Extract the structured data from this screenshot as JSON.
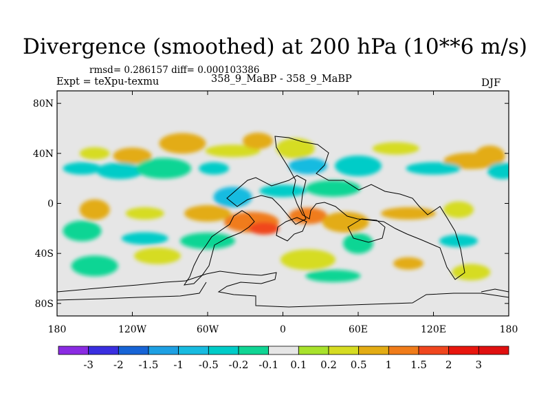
{
  "header": {
    "title": "Divergence (smoothed) at 200 hPa (10**6 m/s)",
    "stats": "rmsd= 0.286157 diff= 0.000103386",
    "expt": "Expt = teXpu-texmu",
    "cases": "358_9_MaBP - 358_9_MaBP",
    "season": "DJF"
  },
  "chart_data": {
    "type": "heatmap",
    "title": "Divergence (smoothed) at 200 hPa (10**6 m/s)",
    "xlabel": "",
    "ylabel": "",
    "xlim": [
      -180,
      180
    ],
    "ylim": [
      -90,
      90
    ],
    "x_ticks": [
      {
        "value": -180,
        "label": "180"
      },
      {
        "value": -120,
        "label": "120W"
      },
      {
        "value": -60,
        "label": "60W"
      },
      {
        "value": 0,
        "label": "0"
      },
      {
        "value": 60,
        "label": "60E"
      },
      {
        "value": 120,
        "label": "120E"
      },
      {
        "value": 180,
        "label": "180"
      }
    ],
    "y_ticks": [
      {
        "value": 80,
        "label": "80N"
      },
      {
        "value": 40,
        "label": "40N"
      },
      {
        "value": 0,
        "label": "0"
      },
      {
        "value": -40,
        "label": "40S"
      },
      {
        "value": -80,
        "label": "80S"
      }
    ],
    "colorbar": {
      "levels": [
        "-3",
        "-2",
        "-1.5",
        "-1",
        "-0.5",
        "-0.2",
        "-0.1",
        "0.1",
        "0.2",
        "0.5",
        "1",
        "1.5",
        "2",
        "3"
      ],
      "colors": [
        "#8a2be2",
        "#3a2ee0",
        "#1764d6",
        "#1ea0e3",
        "#18bbe0",
        "#00ccc8",
        "#10d594",
        "#e6e6e6",
        "#a8e22c",
        "#d6dc22",
        "#e3ac14",
        "#f07c1a",
        "#f0461e",
        "#e8160e",
        "#e01010"
      ]
    },
    "field_blobs": [
      {
        "lon": -150,
        "lat": 40,
        "value": 0.2
      },
      {
        "lon": -120,
        "lat": 38,
        "value": 0.5
      },
      {
        "lon": -80,
        "lat": 48,
        "value": 0.5
      },
      {
        "lon": -40,
        "lat": 42,
        "value": 0.2
      },
      {
        "lon": -20,
        "lat": 50,
        "value": 0.5
      },
      {
        "lon": 10,
        "lat": 44,
        "value": 0.2
      },
      {
        "lon": 90,
        "lat": 44,
        "value": 0.2
      },
      {
        "lon": 150,
        "lat": 34,
        "value": 0.5
      },
      {
        "lon": 165,
        "lat": 38,
        "value": 0.5
      },
      {
        "lon": -160,
        "lat": 28,
        "value": -0.5
      },
      {
        "lon": -130,
        "lat": 26,
        "value": -0.5
      },
      {
        "lon": -95,
        "lat": 28,
        "value": -0.2
      },
      {
        "lon": -55,
        "lat": 28,
        "value": -0.5
      },
      {
        "lon": 20,
        "lat": 30,
        "value": -1
      },
      {
        "lon": 60,
        "lat": 30,
        "value": -0.5
      },
      {
        "lon": 120,
        "lat": 28,
        "value": -0.5
      },
      {
        "lon": 175,
        "lat": 26,
        "value": -0.5
      },
      {
        "lon": -40,
        "lat": 5,
        "value": -1
      },
      {
        "lon": 0,
        "lat": 10,
        "value": -0.5
      },
      {
        "lon": 40,
        "lat": 12,
        "value": -0.2
      },
      {
        "lon": -150,
        "lat": -5,
        "value": 0.5
      },
      {
        "lon": -110,
        "lat": -8,
        "value": 0.2
      },
      {
        "lon": -60,
        "lat": -8,
        "value": 0.5
      },
      {
        "lon": -25,
        "lat": -15,
        "value": 1
      },
      {
        "lon": -15,
        "lat": -20,
        "value": 1.5
      },
      {
        "lon": 20,
        "lat": -10,
        "value": 1
      },
      {
        "lon": 50,
        "lat": -15,
        "value": 0.5
      },
      {
        "lon": 100,
        "lat": -8,
        "value": 0.5
      },
      {
        "lon": 140,
        "lat": -5,
        "value": 0.2
      },
      {
        "lon": -160,
        "lat": -22,
        "value": -0.2
      },
      {
        "lon": -110,
        "lat": -28,
        "value": -0.5
      },
      {
        "lon": -60,
        "lat": -30,
        "value": -0.2
      },
      {
        "lon": 60,
        "lat": -32,
        "value": -0.2
      },
      {
        "lon": 140,
        "lat": -30,
        "value": -0.5
      },
      {
        "lon": -100,
        "lat": -42,
        "value": 0.2
      },
      {
        "lon": 20,
        "lat": -45,
        "value": 0.2
      },
      {
        "lon": 100,
        "lat": -48,
        "value": 0.5
      },
      {
        "lon": 150,
        "lat": -55,
        "value": 0.2
      },
      {
        "lon": -150,
        "lat": -50,
        "value": -0.2
      },
      {
        "lon": 40,
        "lat": -58,
        "value": -0.2
      }
    ]
  }
}
